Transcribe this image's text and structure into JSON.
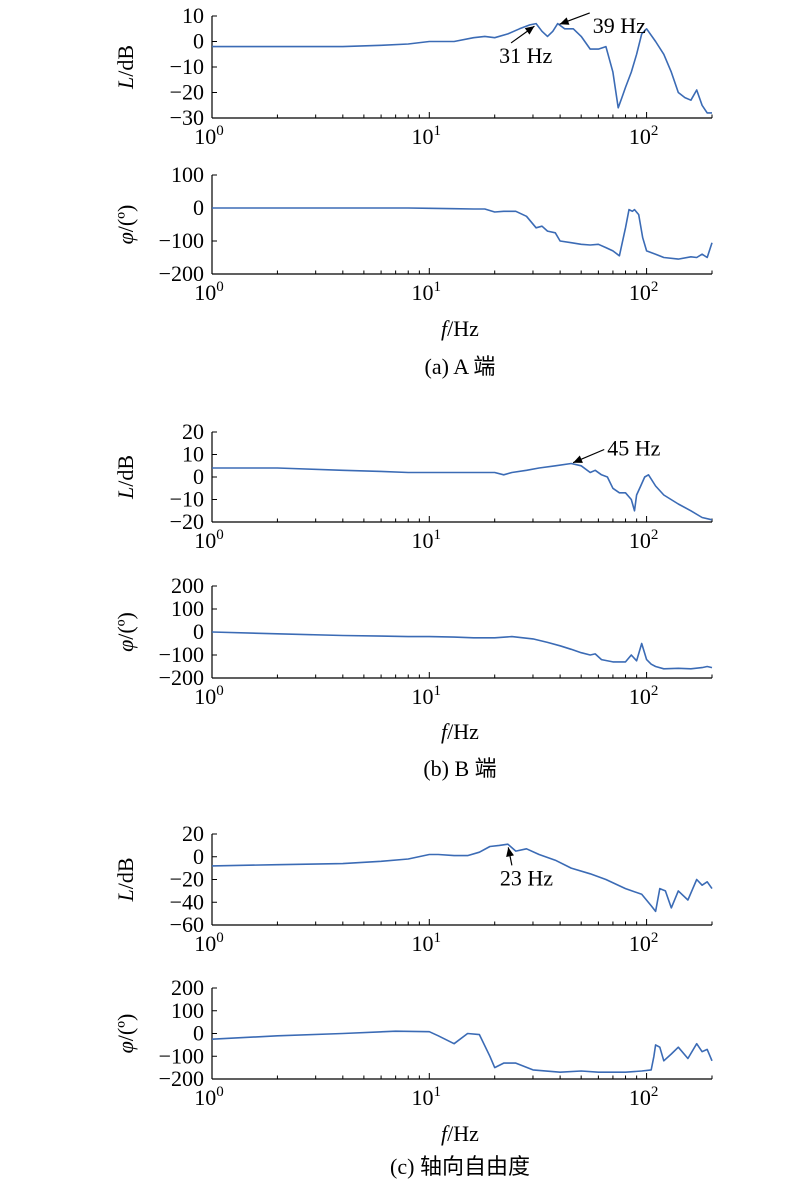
{
  "figure": {
    "xaxis_label_main": "f",
    "xaxis_label_unit": "/Hz",
    "captions": [
      "(a) A 端",
      "(b) B 端",
      "(c) 轴向自由度"
    ]
  },
  "chart_data": [
    {
      "type": "line",
      "panel": "a",
      "subplot": "magnitude",
      "ylabel": "L/dB",
      "xscale": "log",
      "xlim": [
        1,
        200
      ],
      "ylim": [
        -30,
        10
      ],
      "yticks": [
        10,
        0,
        -10,
        -20,
        -30
      ],
      "xtick_labels": [
        "10^0",
        "10^1",
        "10^2"
      ],
      "line_color": "#3b6bb5",
      "series": [
        {
          "x": [
            1,
            2,
            4,
            6,
            8,
            10,
            13,
            16,
            18,
            20,
            23,
            26,
            29,
            31,
            33,
            35,
            37,
            39,
            42,
            46,
            50,
            55,
            60,
            65,
            70,
            74,
            77,
            80,
            85,
            90,
            95,
            100,
            110,
            120,
            130,
            140,
            150,
            160,
            170,
            180,
            190,
            200
          ],
          "y": [
            -2,
            -2,
            -2,
            -1.5,
            -1,
            0,
            0,
            1.5,
            2,
            1.5,
            3,
            5,
            6.5,
            7,
            4,
            2,
            4,
            7,
            5,
            5,
            2,
            -3,
            -3,
            -2,
            -12,
            -26,
            -22,
            -18,
            -12,
            -5,
            3,
            5,
            0,
            -5,
            -12,
            -20,
            -22,
            -23,
            -19,
            -25,
            -28,
            -28
          ]
        }
      ],
      "annotations": [
        {
          "text": "31 Hz",
          "x": 31,
          "y": 6.5
        },
        {
          "text": "39 Hz",
          "x": 39,
          "y": 6.5
        }
      ]
    },
    {
      "type": "line",
      "panel": "a",
      "subplot": "phase",
      "ylabel": "φ/(º)",
      "xscale": "log",
      "xlim": [
        1,
        200
      ],
      "ylim": [
        -200,
        100
      ],
      "yticks": [
        100,
        0,
        -100,
        -200
      ],
      "xtick_labels": [
        "10^0",
        "10^1",
        "10^2"
      ],
      "line_color": "#3b6bb5",
      "series": [
        {
          "x": [
            1,
            2,
            4,
            6,
            8,
            10,
            13,
            16,
            18,
            20,
            22,
            25,
            28,
            31,
            33,
            35,
            38,
            40,
            45,
            50,
            55,
            60,
            65,
            70,
            75,
            80,
            83,
            86,
            88,
            92,
            96,
            100,
            110,
            120,
            140,
            160,
            170,
            180,
            190,
            200
          ],
          "y": [
            0,
            0,
            0,
            0,
            0,
            -1,
            -2,
            -3,
            -3,
            -12,
            -10,
            -10,
            -25,
            -60,
            -55,
            -70,
            -75,
            -100,
            -105,
            -110,
            -112,
            -110,
            -120,
            -130,
            -145,
            -60,
            -5,
            -10,
            -5,
            -20,
            -90,
            -130,
            -140,
            -150,
            -155,
            -148,
            -150,
            -140,
            -150,
            -105
          ]
        }
      ]
    },
    {
      "type": "line",
      "panel": "b",
      "subplot": "magnitude",
      "ylabel": "L/dB",
      "xscale": "log",
      "xlim": [
        1,
        200
      ],
      "ylim": [
        -20,
        20
      ],
      "yticks": [
        20,
        10,
        0,
        -10,
        -20
      ],
      "xtick_labels": [
        "10^0",
        "10^1",
        "10^2"
      ],
      "line_color": "#3b6bb5",
      "series": [
        {
          "x": [
            1,
            2,
            4,
            6,
            8,
            10,
            13,
            16,
            20,
            22,
            24,
            28,
            32,
            38,
            45,
            50,
            55,
            58,
            62,
            66,
            70,
            75,
            80,
            85,
            88,
            90,
            94,
            98,
            102,
            110,
            120,
            140,
            160,
            180,
            200
          ],
          "y": [
            4,
            4,
            3,
            2.5,
            2,
            2,
            2,
            2,
            2,
            1,
            2,
            3,
            4,
            5,
            6,
            5,
            2,
            3,
            1,
            0,
            -5,
            -7,
            -7,
            -10,
            -15,
            -8,
            -4,
            0,
            1,
            -4,
            -8,
            -12,
            -15,
            -18,
            -19
          ]
        }
      ],
      "annotations": [
        {
          "text": "45 Hz",
          "x": 45,
          "y": 6
        }
      ]
    },
    {
      "type": "line",
      "panel": "b",
      "subplot": "phase",
      "ylabel": "φ/(º)",
      "xscale": "log",
      "xlim": [
        1,
        200
      ],
      "ylim": [
        -200,
        200
      ],
      "yticks": [
        200,
        100,
        0,
        -100,
        -200
      ],
      "xtick_labels": [
        "10^0",
        "10^1",
        "10^2"
      ],
      "line_color": "#3b6bb5",
      "series": [
        {
          "x": [
            1,
            2,
            4,
            6,
            8,
            10,
            13,
            16,
            20,
            24,
            30,
            35,
            40,
            45,
            50,
            55,
            58,
            62,
            70,
            80,
            85,
            90,
            95,
            100,
            105,
            110,
            120,
            140,
            160,
            180,
            190,
            200
          ],
          "y": [
            0,
            -8,
            -15,
            -18,
            -20,
            -20,
            -22,
            -25,
            -25,
            -20,
            -30,
            -45,
            -60,
            -75,
            -90,
            -100,
            -95,
            -120,
            -130,
            -130,
            -100,
            -125,
            -50,
            -120,
            -140,
            -150,
            -160,
            -158,
            -160,
            -155,
            -150,
            -155
          ]
        }
      ]
    },
    {
      "type": "line",
      "panel": "c",
      "subplot": "magnitude",
      "ylabel": "L/dB",
      "xscale": "log",
      "xlim": [
        1,
        200
      ],
      "ylim": [
        -60,
        20
      ],
      "yticks": [
        20,
        0,
        -20,
        -40,
        -60
      ],
      "xtick_labels": [
        "10^0",
        "10^1",
        "10^2"
      ],
      "line_color": "#3b6bb5",
      "series": [
        {
          "x": [
            1,
            2,
            4,
            6,
            8,
            10,
            11,
            13,
            15,
            17,
            19,
            21,
            23,
            25,
            28,
            32,
            38,
            45,
            55,
            65,
            80,
            95,
            105,
            110,
            115,
            122,
            130,
            140,
            155,
            170,
            180,
            190,
            200
          ],
          "y": [
            -8,
            -7,
            -6,
            -4,
            -2,
            2,
            2,
            1,
            1,
            4,
            9,
            10,
            11,
            5,
            7,
            2,
            -3,
            -10,
            -15,
            -20,
            -28,
            -33,
            -43,
            -48,
            -28,
            -30,
            -45,
            -30,
            -38,
            -20,
            -25,
            -22,
            -28
          ]
        }
      ],
      "annotations": [
        {
          "text": "23 Hz",
          "x": 23,
          "y": 10
        }
      ]
    },
    {
      "type": "line",
      "panel": "c",
      "subplot": "phase",
      "ylabel": "φ/(º)",
      "xscale": "log",
      "xlim": [
        1,
        200
      ],
      "ylim": [
        -200,
        200
      ],
      "yticks": [
        200,
        100,
        0,
        -100,
        -200
      ],
      "xtick_labels": [
        "10^0",
        "10^1",
        "10^2"
      ],
      "line_color": "#3b6bb5",
      "series": [
        {
          "x": [
            1,
            2,
            4,
            7,
            10,
            11,
            13,
            15,
            17,
            19,
            20,
            22,
            25,
            30,
            40,
            50,
            60,
            80,
            95,
            105,
            108,
            110,
            115,
            120,
            130,
            140,
            155,
            170,
            180,
            190,
            200
          ],
          "y": [
            -25,
            -10,
            0,
            10,
            8,
            -10,
            -45,
            0,
            -5,
            -100,
            -150,
            -130,
            -130,
            -160,
            -170,
            -165,
            -170,
            -170,
            -165,
            -160,
            -100,
            -50,
            -60,
            -120,
            -90,
            -60,
            -110,
            -45,
            -80,
            -70,
            -120
          ]
        }
      ]
    }
  ]
}
